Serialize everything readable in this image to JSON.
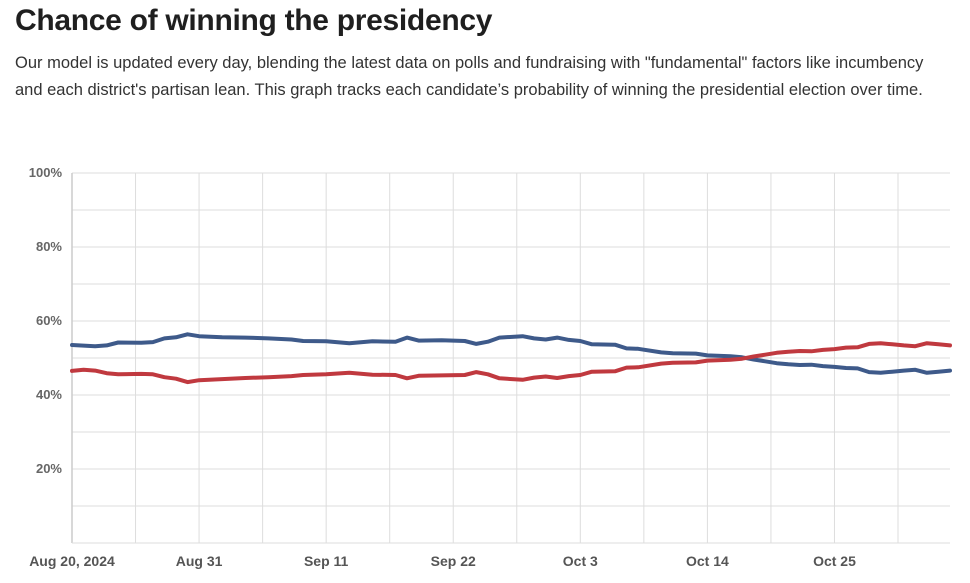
{
  "header": {
    "title": "Chance of winning the presidency",
    "description": "Our model is updated every day, blending the latest data on polls and fundraising with \"fundamental\" factors like incumbency and each district's partisan lean. This graph tracks each candidate’s probability of winning the presidential election over time."
  },
  "chart_data": {
    "type": "line",
    "title": "Chance of winning the presidency",
    "xlabel": "",
    "ylabel": "",
    "ylim": [
      0,
      100
    ],
    "y_ticks": [
      {
        "value": 100,
        "label": "100%"
      },
      {
        "value": 80,
        "label": "80%"
      },
      {
        "value": 60,
        "label": "60%"
      },
      {
        "value": 40,
        "label": "40%"
      },
      {
        "value": 20,
        "label": "20%"
      }
    ],
    "x_start_date": "2024-08-20",
    "x_end_date": "2024-11-04",
    "x_ticks": [
      {
        "date": "2024-08-20",
        "label": "Aug 20, 2024"
      },
      {
        "date": "2024-08-31",
        "label": "Aug 31"
      },
      {
        "date": "2024-09-11",
        "label": "Sep 11"
      },
      {
        "date": "2024-09-22",
        "label": "Sep 22"
      },
      {
        "date": "2024-10-03",
        "label": "Oct 3"
      },
      {
        "date": "2024-10-14",
        "label": "Oct 14"
      },
      {
        "date": "2024-10-25",
        "label": "Oct 25"
      }
    ],
    "grid": true,
    "colors": {
      "blue": "#3e5a8a",
      "red": "#c0393f",
      "grid": "#dddddd",
      "axis": "#cccccc"
    },
    "series": [
      {
        "color": "blue",
        "values": [
          {
            "date": "2024-08-20",
            "y": 53.5
          },
          {
            "date": "2024-08-22",
            "y": 53.2
          },
          {
            "date": "2024-08-23",
            "y": 53.4
          },
          {
            "date": "2024-08-24",
            "y": 54.2
          },
          {
            "date": "2024-08-26",
            "y": 54.1
          },
          {
            "date": "2024-08-27",
            "y": 54.3
          },
          {
            "date": "2024-08-28",
            "y": 55.3
          },
          {
            "date": "2024-08-29",
            "y": 55.6
          },
          {
            "date": "2024-08-30",
            "y": 56.4
          },
          {
            "date": "2024-08-31",
            "y": 55.9
          },
          {
            "date": "2024-09-02",
            "y": 55.6
          },
          {
            "date": "2024-09-04",
            "y": 55.5
          },
          {
            "date": "2024-09-06",
            "y": 55.3
          },
          {
            "date": "2024-09-08",
            "y": 55.0
          },
          {
            "date": "2024-09-09",
            "y": 54.6
          },
          {
            "date": "2024-09-11",
            "y": 54.5
          },
          {
            "date": "2024-09-13",
            "y": 54.0
          },
          {
            "date": "2024-09-15",
            "y": 54.5
          },
          {
            "date": "2024-09-17",
            "y": 54.4
          },
          {
            "date": "2024-09-18",
            "y": 55.5
          },
          {
            "date": "2024-09-19",
            "y": 54.7
          },
          {
            "date": "2024-09-21",
            "y": 54.8
          },
          {
            "date": "2024-09-23",
            "y": 54.6
          },
          {
            "date": "2024-09-24",
            "y": 53.8
          },
          {
            "date": "2024-09-25",
            "y": 54.4
          },
          {
            "date": "2024-09-26",
            "y": 55.5
          },
          {
            "date": "2024-09-28",
            "y": 55.9
          },
          {
            "date": "2024-09-29",
            "y": 55.3
          },
          {
            "date": "2024-09-30",
            "y": 55.0
          },
          {
            "date": "2024-10-01",
            "y": 55.5
          },
          {
            "date": "2024-10-02",
            "y": 54.9
          },
          {
            "date": "2024-10-03",
            "y": 54.6
          },
          {
            "date": "2024-10-04",
            "y": 53.7
          },
          {
            "date": "2024-10-06",
            "y": 53.6
          },
          {
            "date": "2024-10-07",
            "y": 52.6
          },
          {
            "date": "2024-10-08",
            "y": 52.5
          },
          {
            "date": "2024-10-10",
            "y": 51.5
          },
          {
            "date": "2024-10-11",
            "y": 51.3
          },
          {
            "date": "2024-10-13",
            "y": 51.2
          },
          {
            "date": "2024-10-14",
            "y": 50.7
          },
          {
            "date": "2024-10-16",
            "y": 50.5
          },
          {
            "date": "2024-10-17",
            "y": 50.2
          },
          {
            "date": "2024-10-18",
            "y": 49.6
          },
          {
            "date": "2024-10-19",
            "y": 49.1
          },
          {
            "date": "2024-10-20",
            "y": 48.6
          },
          {
            "date": "2024-10-21",
            "y": 48.3
          },
          {
            "date": "2024-10-22",
            "y": 48.1
          },
          {
            "date": "2024-10-23",
            "y": 48.2
          },
          {
            "date": "2024-10-24",
            "y": 47.8
          },
          {
            "date": "2024-10-25",
            "y": 47.6
          },
          {
            "date": "2024-10-26",
            "y": 47.3
          },
          {
            "date": "2024-10-27",
            "y": 47.2
          },
          {
            "date": "2024-10-28",
            "y": 46.2
          },
          {
            "date": "2024-10-29",
            "y": 46.0
          },
          {
            "date": "2024-10-30",
            "y": 46.3
          },
          {
            "date": "2024-10-31",
            "y": 46.6
          },
          {
            "date": "2024-11-01",
            "y": 46.8
          },
          {
            "date": "2024-11-02",
            "y": 46.0
          },
          {
            "date": "2024-11-03",
            "y": 46.3
          },
          {
            "date": "2024-11-04",
            "y": 46.6
          }
        ]
      },
      {
        "color": "red",
        "values": [
          {
            "date": "2024-08-20",
            "y": 46.5
          },
          {
            "date": "2024-08-21",
            "y": 46.8
          },
          {
            "date": "2024-08-22",
            "y": 46.6
          },
          {
            "date": "2024-08-23",
            "y": 45.9
          },
          {
            "date": "2024-08-24",
            "y": 45.6
          },
          {
            "date": "2024-08-26",
            "y": 45.7
          },
          {
            "date": "2024-08-27",
            "y": 45.6
          },
          {
            "date": "2024-08-28",
            "y": 44.8
          },
          {
            "date": "2024-08-29",
            "y": 44.4
          },
          {
            "date": "2024-08-30",
            "y": 43.5
          },
          {
            "date": "2024-08-31",
            "y": 44.0
          },
          {
            "date": "2024-09-02",
            "y": 44.3
          },
          {
            "date": "2024-09-04",
            "y": 44.6
          },
          {
            "date": "2024-09-06",
            "y": 44.8
          },
          {
            "date": "2024-09-08",
            "y": 45.1
          },
          {
            "date": "2024-09-09",
            "y": 45.4
          },
          {
            "date": "2024-09-11",
            "y": 45.6
          },
          {
            "date": "2024-09-13",
            "y": 46.0
          },
          {
            "date": "2024-09-15",
            "y": 45.5
          },
          {
            "date": "2024-09-17",
            "y": 45.4
          },
          {
            "date": "2024-09-18",
            "y": 44.5
          },
          {
            "date": "2024-09-19",
            "y": 45.2
          },
          {
            "date": "2024-09-21",
            "y": 45.3
          },
          {
            "date": "2024-09-23",
            "y": 45.4
          },
          {
            "date": "2024-09-24",
            "y": 46.2
          },
          {
            "date": "2024-09-25",
            "y": 45.6
          },
          {
            "date": "2024-09-26",
            "y": 44.5
          },
          {
            "date": "2024-09-28",
            "y": 44.1
          },
          {
            "date": "2024-09-29",
            "y": 44.7
          },
          {
            "date": "2024-09-30",
            "y": 45.0
          },
          {
            "date": "2024-10-01",
            "y": 44.6
          },
          {
            "date": "2024-10-02",
            "y": 45.1
          },
          {
            "date": "2024-10-03",
            "y": 45.4
          },
          {
            "date": "2024-10-04",
            "y": 46.3
          },
          {
            "date": "2024-10-06",
            "y": 46.4
          },
          {
            "date": "2024-10-07",
            "y": 47.4
          },
          {
            "date": "2024-10-08",
            "y": 47.5
          },
          {
            "date": "2024-10-10",
            "y": 48.5
          },
          {
            "date": "2024-10-11",
            "y": 48.7
          },
          {
            "date": "2024-10-13",
            "y": 48.8
          },
          {
            "date": "2024-10-14",
            "y": 49.3
          },
          {
            "date": "2024-10-16",
            "y": 49.5
          },
          {
            "date": "2024-10-17",
            "y": 49.8
          },
          {
            "date": "2024-10-18",
            "y": 50.4
          },
          {
            "date": "2024-10-19",
            "y": 50.9
          },
          {
            "date": "2024-10-20",
            "y": 51.4
          },
          {
            "date": "2024-10-21",
            "y": 51.7
          },
          {
            "date": "2024-10-22",
            "y": 51.9
          },
          {
            "date": "2024-10-23",
            "y": 51.8
          },
          {
            "date": "2024-10-24",
            "y": 52.2
          },
          {
            "date": "2024-10-25",
            "y": 52.4
          },
          {
            "date": "2024-10-26",
            "y": 52.8
          },
          {
            "date": "2024-10-27",
            "y": 52.9
          },
          {
            "date": "2024-10-28",
            "y": 53.8
          },
          {
            "date": "2024-10-29",
            "y": 54.0
          },
          {
            "date": "2024-10-30",
            "y": 53.7
          },
          {
            "date": "2024-10-31",
            "y": 53.4
          },
          {
            "date": "2024-11-01",
            "y": 53.2
          },
          {
            "date": "2024-11-02",
            "y": 54.0
          },
          {
            "date": "2024-11-03",
            "y": 53.7
          },
          {
            "date": "2024-11-04",
            "y": 53.4
          }
        ]
      }
    ]
  }
}
